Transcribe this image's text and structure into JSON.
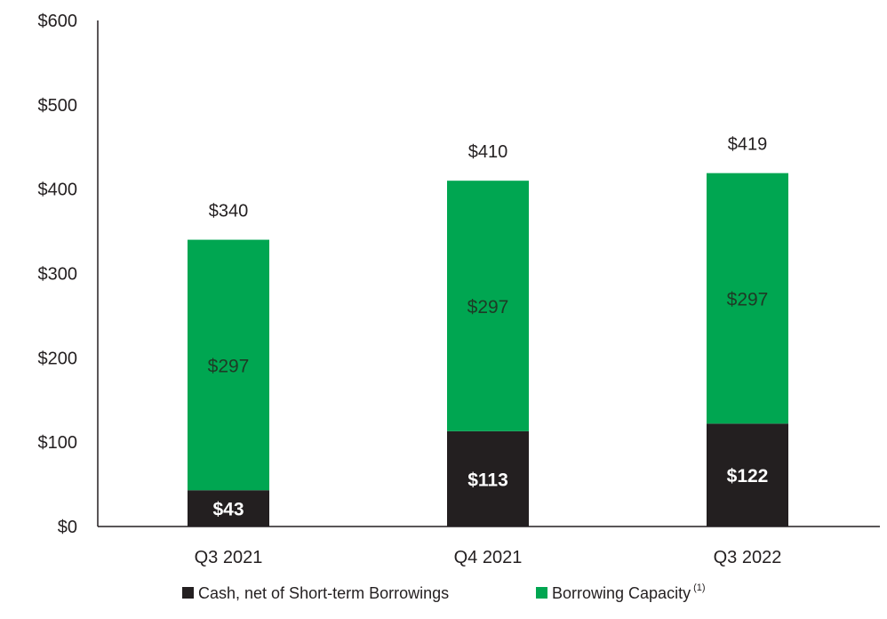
{
  "chart_data": {
    "type": "bar",
    "stacked": true,
    "categories": [
      "Q3 2021",
      "Q4 2021",
      "Q3 2022"
    ],
    "series": [
      {
        "name": "Cash, net of Short-term Borrowings",
        "values": [
          43,
          113,
          122
        ],
        "color": "#231f20",
        "labels": [
          "$43",
          "$113",
          "$122"
        ]
      },
      {
        "name": "Borrowing Capacity",
        "values": [
          297,
          297,
          297
        ],
        "color": "#00a651",
        "labels": [
          "$297",
          "$297",
          "$297"
        ]
      }
    ],
    "totals": [
      340,
      410,
      419
    ],
    "total_labels": [
      "$340",
      "$410",
      "$419"
    ],
    "ylim": [
      0,
      600
    ],
    "y_ticks": [
      0,
      100,
      200,
      300,
      400,
      500,
      600
    ],
    "y_tick_labels": [
      "$0",
      "$100",
      "$200",
      "$300",
      "$400",
      "$500",
      "$600"
    ],
    "legend": {
      "position": "bottom",
      "items": [
        {
          "label": "Cash, net of Short-term Borrowings",
          "color": "#231f20",
          "superscript": ""
        },
        {
          "label": "Borrowing Capacity",
          "color": "#00a651",
          "superscript": "(1)"
        }
      ]
    },
    "grid": false
  }
}
